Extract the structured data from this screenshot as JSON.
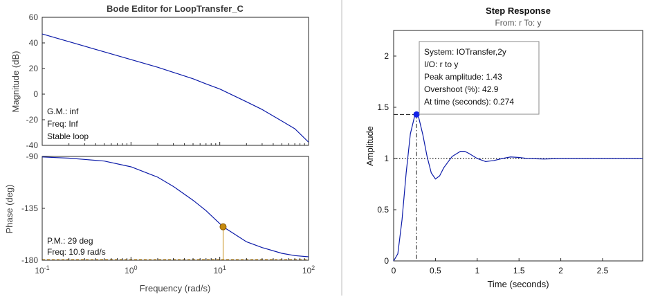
{
  "bode": {
    "title": "Bode Editor for LoopTransfer_C",
    "colors": {
      "curve": "#0b1aa8",
      "margin_marker": "#c58a10",
      "axes": "#262626",
      "label": "#404040"
    },
    "magnitude": {
      "ylabel": "Magnitude (dB)",
      "ylim": [
        -40,
        60
      ],
      "yticks": [
        "60",
        "40",
        "20",
        "0",
        "-20",
        "-40"
      ],
      "ytick_values": [
        60,
        40,
        20,
        0,
        -20,
        -40
      ],
      "info": [
        "G.M.: inf",
        "Freq: Inf",
        "Stable loop"
      ]
    },
    "phase": {
      "ylabel": "Phase (deg)",
      "ylim": [
        -180,
        -90
      ],
      "yticks": [
        "-90",
        "-135",
        "-180"
      ],
      "ytick_values": [
        -90,
        -135,
        -180
      ],
      "info": [
        "P.M.: 29 deg",
        "Freq: 10.9 rad/s"
      ],
      "pm_point": {
        "freq": 10.9,
        "phase": -151
      }
    },
    "xlabel": "Frequency (rad/s)",
    "xlim_log10": [
      -1,
      2
    ],
    "xticks": [
      {
        "base": "10",
        "exp": "-1"
      },
      {
        "base": "10",
        "exp": "0"
      },
      {
        "base": "10",
        "exp": "1"
      },
      {
        "base": "10",
        "exp": "2"
      }
    ]
  },
  "step": {
    "title": "Step Response",
    "subtitle": "From: r  To: y",
    "ylabel": "Amplitude",
    "xlabel": "Time (seconds)",
    "xlim": [
      0,
      2.98
    ],
    "ylim": [
      0,
      2.25
    ],
    "xticks": [
      "0",
      "0.5",
      "1",
      "1.5",
      "2",
      "2.5"
    ],
    "xtick_values": [
      0,
      0.5,
      1,
      1.5,
      2,
      2.5
    ],
    "yticks": [
      "0",
      "0.5",
      "1",
      "1.5",
      "2"
    ],
    "ytick_values": [
      0,
      0.5,
      1,
      1.5,
      2
    ],
    "peak": {
      "time": 0.274,
      "amplitude": 1.43
    },
    "tooltip": [
      "System:  IOTransfer,2y",
      "I/O:  r  to  y",
      "Peak  amplitude:  1.43",
      "Overshoot  (%):  42.9",
      "At  time  (seconds):  0.274"
    ],
    "colors": {
      "curve": "#0b1aa8",
      "peak_marker": "#1020e8"
    }
  },
  "chart_data": [
    {
      "type": "line",
      "title": "Bode Editor for LoopTransfer_C",
      "xlabel": "Frequency (rad/s)",
      "ylabel": "Magnitude (dB)",
      "x_scale": "log",
      "xlim": [
        0.1,
        100
      ],
      "ylim": [
        -40,
        60
      ],
      "x": [
        0.1,
        0.2,
        0.5,
        1,
        2,
        3,
        5,
        7,
        10,
        20,
        30,
        50,
        70,
        100
      ],
      "y": [
        47,
        41,
        33,
        27,
        21,
        17,
        12,
        8,
        4,
        -6,
        -12,
        -21,
        -27,
        -37.5
      ]
    },
    {
      "type": "line",
      "title": "",
      "xlabel": "Frequency (rad/s)",
      "ylabel": "Phase (deg)",
      "x_scale": "log",
      "xlim": [
        0.1,
        100
      ],
      "ylim": [
        -180,
        -90
      ],
      "x": [
        0.1,
        0.2,
        0.5,
        1,
        2,
        3,
        5,
        7,
        10.9,
        20,
        30,
        50,
        70,
        100
      ],
      "y": [
        -90.5,
        -91.5,
        -94,
        -99,
        -108,
        -116,
        -128,
        -137,
        -151,
        -164,
        -169,
        -174,
        -176,
        -177
      ]
    },
    {
      "type": "line",
      "title": "Step Response",
      "xlabel": "Time (seconds)",
      "ylabel": "Amplitude",
      "xlim": [
        0,
        2.98
      ],
      "ylim": [
        0,
        2.25
      ],
      "x": [
        0,
        0.05,
        0.1,
        0.15,
        0.2,
        0.25,
        0.274,
        0.3,
        0.35,
        0.4,
        0.45,
        0.5,
        0.55,
        0.6,
        0.7,
        0.8,
        0.85,
        0.9,
        1.0,
        1.1,
        1.2,
        1.3,
        1.4,
        1.5,
        1.6,
        1.8,
        2.0,
        2.5,
        2.98
      ],
      "y": [
        0,
        0.07,
        0.4,
        0.86,
        1.24,
        1.41,
        1.43,
        1.4,
        1.23,
        1.02,
        0.86,
        0.8,
        0.83,
        0.91,
        1.02,
        1.07,
        1.07,
        1.05,
        1.0,
        0.97,
        0.98,
        1.0,
        1.015,
        1.01,
        1.0,
        0.995,
        1.0,
        1.0,
        1.0
      ]
    }
  ]
}
